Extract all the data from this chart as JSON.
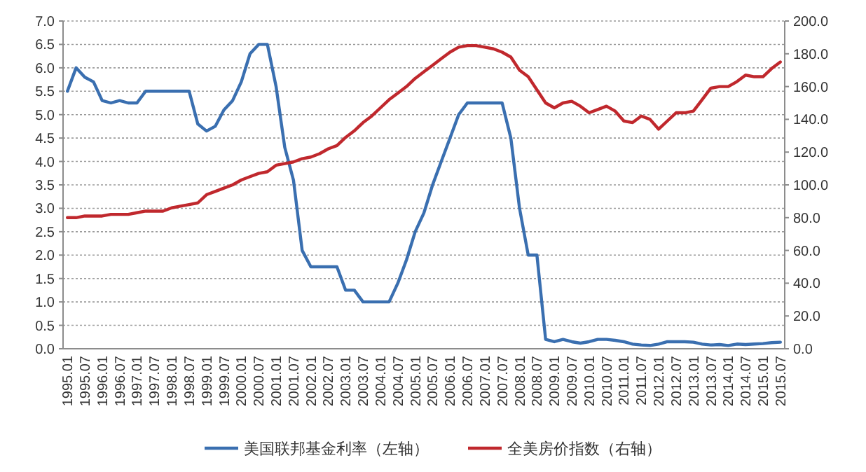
{
  "chart_data": {
    "type": "line",
    "categories": [
      "1995.01",
      null,
      "1995.07",
      null,
      "1996.01",
      null,
      "1996.07",
      null,
      "1997.01",
      null,
      "1997.07",
      null,
      "1998.01",
      null,
      "1998.07",
      null,
      "1999.01",
      null,
      "1999.07",
      null,
      "2000.01",
      null,
      "2000.07",
      null,
      "2001.01",
      null,
      "2001.07",
      null,
      "2002.01",
      null,
      "2002.07",
      null,
      "2003.01",
      null,
      "2003.07",
      null,
      "2004.01",
      null,
      "2004.07",
      null,
      "2005.01",
      null,
      "2005.07",
      null,
      "2006.01",
      null,
      "2006.07",
      null,
      "2007.01",
      null,
      "2007.07",
      null,
      "2008.01",
      null,
      "2008.07",
      null,
      "2009.01",
      null,
      "2009.07",
      null,
      "2010.01",
      null,
      "2010.07",
      null,
      "2011.01",
      null,
      "2011.07",
      null,
      "2012.01",
      null,
      "2012.07",
      null,
      "2013.01",
      null,
      "2013.07",
      null,
      "2014.01",
      null,
      "2014.07",
      null,
      "2015.01",
      null,
      "2015.07"
    ],
    "series": [
      {
        "name": "美国联邦基金利率（左轴）",
        "color": "#3a6fb0",
        "values": [
          5.5,
          6.0,
          5.8,
          5.7,
          5.3,
          5.25,
          5.3,
          5.25,
          5.25,
          5.5,
          5.5,
          5.5,
          5.5,
          5.5,
          5.5,
          4.8,
          4.65,
          4.75,
          5.1,
          5.3,
          5.7,
          6.3,
          6.5,
          6.5,
          5.6,
          4.3,
          3.6,
          2.1,
          1.75,
          1.75,
          1.75,
          1.75,
          1.25,
          1.25,
          1.0,
          1.0,
          1.0,
          1.0,
          1.4,
          1.9,
          2.5,
          2.9,
          3.5,
          4.0,
          4.5,
          5.0,
          5.25,
          5.25,
          5.25,
          5.25,
          5.25,
          4.5,
          3.0,
          2.0,
          2.0,
          0.2,
          0.15,
          0.2,
          0.15,
          0.12,
          0.15,
          0.2,
          0.2,
          0.18,
          0.15,
          0.1,
          0.08,
          0.07,
          0.1,
          0.15,
          0.15,
          0.15,
          0.14,
          0.1,
          0.08,
          0.09,
          0.07,
          0.1,
          0.09,
          0.1,
          0.11,
          0.13,
          0.14
        ]
      },
      {
        "name": "全美房价指数（右轴）",
        "color": "#c0282d",
        "axis": "y2",
        "values": [
          80,
          80,
          81,
          81,
          81,
          82,
          82,
          82,
          83,
          84,
          84,
          84,
          86,
          87,
          88,
          89,
          94,
          96,
          98,
          100,
          103,
          105,
          107,
          108,
          112,
          113,
          114,
          116,
          117,
          119,
          122,
          124,
          129,
          133,
          138,
          142,
          147,
          152,
          156,
          160,
          165,
          169,
          173,
          177,
          181,
          184,
          185,
          185,
          184,
          183,
          181,
          178,
          170,
          166,
          158,
          150,
          147,
          150,
          151,
          148,
          144,
          146,
          148,
          145,
          139,
          138,
          142,
          140,
          134,
          139,
          144,
          144,
          145,
          152,
          159,
          160,
          160,
          163,
          167,
          166,
          166,
          171,
          175
        ]
      }
    ],
    "ylim": [
      0,
      7
    ],
    "yticks": [
      {
        "value": 0,
        "label": "0.0"
      },
      {
        "value": 0.5,
        "label": "0.5"
      },
      {
        "value": 1,
        "label": "1.0"
      },
      {
        "value": 1.5,
        "label": "1.5"
      },
      {
        "value": 2,
        "label": "2.0"
      },
      {
        "value": 2.5,
        "label": "2.5"
      },
      {
        "value": 3,
        "label": "3.0"
      },
      {
        "value": 3.5,
        "label": "3.5"
      },
      {
        "value": 4,
        "label": "4.0"
      },
      {
        "value": 4.5,
        "label": "4.5"
      },
      {
        "value": 5,
        "label": "5.0"
      },
      {
        "value": 5.5,
        "label": "5.5"
      },
      {
        "value": 6,
        "label": "6.0"
      },
      {
        "value": 6.5,
        "label": "6.5"
      },
      {
        "value": 7,
        "label": "7.0"
      }
    ],
    "y2lim": [
      0,
      200
    ],
    "y2ticks": [
      {
        "value": 0,
        "label": "0.0"
      },
      {
        "value": 20,
        "label": "20.0"
      },
      {
        "value": 40,
        "label": "40.0"
      },
      {
        "value": 60,
        "label": "60.0"
      },
      {
        "value": 80,
        "label": "80.0"
      },
      {
        "value": 100,
        "label": "100.0"
      },
      {
        "value": 120,
        "label": "120.0"
      },
      {
        "value": 140,
        "label": "140.0"
      },
      {
        "value": 160,
        "label": "160.0"
      },
      {
        "value": 180,
        "label": "180.0"
      },
      {
        "value": 200,
        "label": "200.0"
      }
    ],
    "grid": "y",
    "legend": "bottom"
  }
}
